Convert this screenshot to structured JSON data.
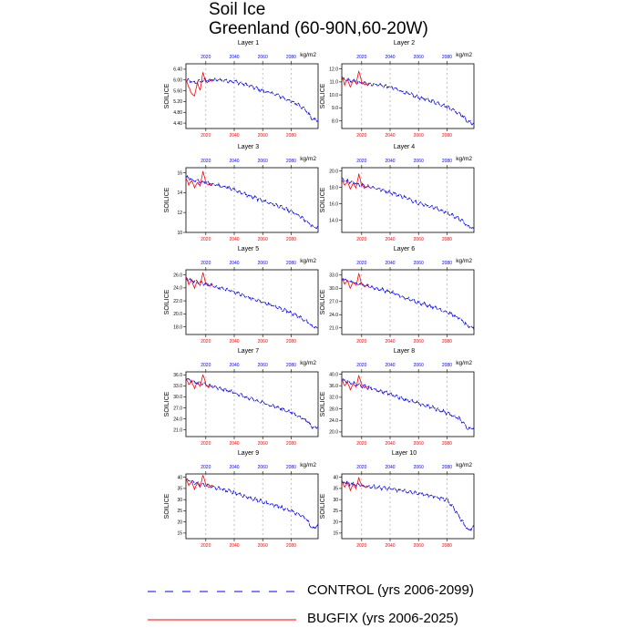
{
  "figure": {
    "title": "Soil Ice",
    "subtitle": "Greenland (60-90N,60-20W)",
    "units": "kg/m2",
    "ylabel": "SOILICE",
    "colors": {
      "control": "#0000ff",
      "bugfix": "#ff0000",
      "grid": "#999999"
    }
  },
  "legend": {
    "items": [
      {
        "label": "CONTROL (yrs 2006-2099)",
        "color": "#0000ff",
        "dash": "dashed"
      },
      {
        "label": "BUGFIX (yrs 2006-2025)",
        "color": "#ff0000",
        "dash": "solid"
      }
    ]
  },
  "chart_data": [
    {
      "type": "line",
      "title": "Layer 1",
      "ylabel": "SOILICE",
      "units": "kg/m2",
      "xlim": [
        2006,
        2099
      ],
      "ylim": [
        4.2,
        6.6
      ],
      "xticks": [
        2020,
        2040,
        2060,
        2080
      ],
      "yticks": [
        4.4,
        4.8,
        5.2,
        5.6,
        6.0,
        6.4
      ],
      "ytick_labels": [
        "4.40",
        "4.80",
        "5.20",
        "5.60",
        "6.00",
        "6.40"
      ],
      "control": {
        "x": [
          2006,
          2012,
          2020,
          2030,
          2040,
          2050,
          2060,
          2070,
          2080,
          2085,
          2090,
          2095,
          2099
        ],
        "y": [
          6.0,
          5.9,
          6.0,
          6.0,
          5.95,
          5.8,
          5.6,
          5.45,
          5.2,
          5.1,
          4.9,
          4.55,
          4.5
        ]
      },
      "bugfix": {
        "x": [
          2006,
          2008,
          2010,
          2012,
          2014,
          2016,
          2018,
          2020,
          2022,
          2025
        ],
        "y": [
          6.0,
          5.75,
          5.5,
          5.4,
          5.9,
          5.6,
          6.3,
          5.9,
          5.95,
          6.0
        ]
      }
    },
    {
      "type": "line",
      "title": "Layer 2",
      "ylabel": "SOILICE",
      "units": "kg/m2",
      "xlim": [
        2006,
        2099
      ],
      "ylim": [
        7.4,
        12.4
      ],
      "xticks": [
        2020,
        2040,
        2060,
        2080
      ],
      "yticks": [
        8.0,
        9.0,
        10.0,
        11.0,
        12.0
      ],
      "ytick_labels": [
        "8.0",
        "9.0",
        "10.0",
        "11.0",
        "12.0"
      ],
      "control": {
        "x": [
          2006,
          2012,
          2020,
          2030,
          2040,
          2050,
          2060,
          2070,
          2080,
          2085,
          2090,
          2095,
          2099
        ],
        "y": [
          11.2,
          11.1,
          10.9,
          10.8,
          10.6,
          10.2,
          9.8,
          9.5,
          9.1,
          8.8,
          8.5,
          7.9,
          7.8
        ]
      },
      "bugfix": {
        "x": [
          2006,
          2008,
          2010,
          2012,
          2014,
          2016,
          2018,
          2020,
          2022,
          2025
        ],
        "y": [
          11.5,
          10.8,
          11.2,
          10.6,
          11.1,
          10.9,
          11.8,
          11.0,
          10.8,
          10.9
        ]
      }
    },
    {
      "type": "line",
      "title": "Layer 3",
      "ylabel": "SOILICE",
      "units": "kg/m2",
      "xlim": [
        2006,
        2099
      ],
      "ylim": [
        10,
        16.5
      ],
      "xticks": [
        2020,
        2040,
        2060,
        2080
      ],
      "yticks": [
        10,
        12,
        14,
        16
      ],
      "ytick_labels": [
        "10",
        "12",
        "14",
        "16"
      ],
      "control": {
        "x": [
          2006,
          2012,
          2020,
          2030,
          2040,
          2050,
          2060,
          2070,
          2080,
          2085,
          2090,
          2095,
          2099
        ],
        "y": [
          15.6,
          15.2,
          15.0,
          14.7,
          14.3,
          13.7,
          13.2,
          12.7,
          12.1,
          11.7,
          11.2,
          10.6,
          10.5
        ]
      },
      "bugfix": {
        "x": [
          2006,
          2008,
          2010,
          2012,
          2014,
          2016,
          2018,
          2020,
          2022,
          2025
        ],
        "y": [
          15.5,
          14.8,
          15.2,
          14.5,
          15.0,
          14.7,
          16.1,
          15.0,
          14.8,
          14.9
        ]
      }
    },
    {
      "type": "line",
      "title": "Layer 4",
      "ylabel": "SOILICE",
      "units": "kg/m2",
      "xlim": [
        2006,
        2099
      ],
      "ylim": [
        12.5,
        20.4
      ],
      "xticks": [
        2020,
        2040,
        2060,
        2080
      ],
      "yticks": [
        14.0,
        16.0,
        18.0,
        20.0
      ],
      "ytick_labels": [
        "14.0",
        "16.0",
        "18.0",
        "20.0"
      ],
      "control": {
        "x": [
          2006,
          2012,
          2020,
          2030,
          2040,
          2050,
          2060,
          2070,
          2080,
          2085,
          2090,
          2095,
          2099
        ],
        "y": [
          19.0,
          18.6,
          18.3,
          17.9,
          17.4,
          16.8,
          16.1,
          15.6,
          14.9,
          14.5,
          14.0,
          13.2,
          13.0
        ]
      },
      "bugfix": {
        "x": [
          2006,
          2008,
          2010,
          2012,
          2014,
          2016,
          2018,
          2020,
          2022,
          2025
        ],
        "y": [
          19.0,
          18.2,
          18.8,
          17.8,
          18.5,
          18.0,
          19.6,
          18.3,
          17.9,
          18.1
        ]
      }
    },
    {
      "type": "line",
      "title": "Layer 5",
      "ylabel": "SOILICE",
      "units": "kg/m2",
      "xlim": [
        2006,
        2099
      ],
      "ylim": [
        16.8,
        26.8
      ],
      "xticks": [
        2020,
        2040,
        2060,
        2080
      ],
      "yticks": [
        18.0,
        20.0,
        22.0,
        24.0,
        26.0
      ],
      "ytick_labels": [
        "18.0",
        "20.0",
        "22.0",
        "24.0",
        "26.0"
      ],
      "control": {
        "x": [
          2006,
          2012,
          2020,
          2030,
          2040,
          2050,
          2060,
          2070,
          2080,
          2085,
          2090,
          2095,
          2099
        ],
        "y": [
          25.5,
          25.0,
          24.6,
          24.0,
          23.4,
          22.5,
          21.8,
          21.0,
          20.2,
          19.6,
          19.0,
          18.0,
          17.8
        ]
      },
      "bugfix": {
        "x": [
          2006,
          2008,
          2010,
          2012,
          2014,
          2016,
          2018,
          2020,
          2022,
          2025
        ],
        "y": [
          25.6,
          24.6,
          25.2,
          24.0,
          25.0,
          24.4,
          26.4,
          24.7,
          24.2,
          24.5
        ]
      }
    },
    {
      "type": "line",
      "title": "Layer 6",
      "ylabel": "SOILICE",
      "units": "kg/m2",
      "xlim": [
        2006,
        2099
      ],
      "ylim": [
        19.5,
        34.2
      ],
      "xticks": [
        2020,
        2040,
        2060,
        2080
      ],
      "yticks": [
        21.0,
        24.0,
        27.0,
        30.0,
        33.0
      ],
      "ytick_labels": [
        "21.0",
        "24.0",
        "27.0",
        "30.0",
        "33.0"
      ],
      "control": {
        "x": [
          2006,
          2012,
          2020,
          2030,
          2040,
          2050,
          2060,
          2070,
          2080,
          2085,
          2090,
          2095,
          2099
        ],
        "y": [
          32.3,
          31.5,
          30.9,
          30.0,
          29.2,
          27.8,
          26.8,
          25.8,
          24.6,
          23.8,
          22.9,
          21.2,
          21.0
        ]
      },
      "bugfix": {
        "x": [
          2006,
          2008,
          2010,
          2012,
          2014,
          2016,
          2018,
          2020,
          2022,
          2025
        ],
        "y": [
          32.4,
          31.0,
          31.8,
          30.0,
          31.5,
          30.6,
          33.3,
          31.0,
          30.4,
          30.8
        ]
      }
    },
    {
      "type": "line",
      "title": "Layer 7",
      "ylabel": "SOILICE",
      "units": "kg/m2",
      "xlim": [
        2006,
        2099
      ],
      "ylim": [
        19.2,
        36.8
      ],
      "xticks": [
        2020,
        2040,
        2060,
        2080
      ],
      "yticks": [
        21.0,
        24.0,
        27.0,
        30.0,
        33.0,
        36.0
      ],
      "ytick_labels": [
        "21.0",
        "24.0",
        "27.0",
        "30.0",
        "33.0",
        "36.0"
      ],
      "control": {
        "x": [
          2006,
          2012,
          2020,
          2030,
          2040,
          2050,
          2060,
          2070,
          2080,
          2085,
          2090,
          2095,
          2099
        ],
        "y": [
          35.0,
          34.0,
          33.3,
          32.2,
          31.2,
          29.6,
          28.4,
          27.2,
          25.8,
          24.8,
          23.8,
          21.8,
          21.8
        ]
      },
      "bugfix": {
        "x": [
          2006,
          2008,
          2010,
          2012,
          2014,
          2016,
          2018,
          2020,
          2022,
          2025
        ],
        "y": [
          35.2,
          33.4,
          34.3,
          32.3,
          34.0,
          32.9,
          36.1,
          33.5,
          32.7,
          33.1
        ]
      }
    },
    {
      "type": "line",
      "title": "Layer 8",
      "ylabel": "SOILICE",
      "units": "kg/m2",
      "xlim": [
        2006,
        2099
      ],
      "ylim": [
        18.4,
        40.8
      ],
      "xticks": [
        2020,
        2040,
        2060,
        2080
      ],
      "yticks": [
        20.0,
        24.0,
        28.0,
        32.0,
        36.0,
        40.0
      ],
      "ytick_labels": [
        "20.0",
        "24.0",
        "28.0",
        "32.0",
        "36.0",
        "40.0"
      ],
      "control": {
        "x": [
          2006,
          2012,
          2020,
          2030,
          2040,
          2050,
          2060,
          2070,
          2080,
          2085,
          2090,
          2095,
          2099
        ],
        "y": [
          38.0,
          37.0,
          36.0,
          34.6,
          33.2,
          31.4,
          29.8,
          28.4,
          26.6,
          25.4,
          24.2,
          21.0,
          21.4
        ]
      },
      "bugfix": {
        "x": [
          2006,
          2008,
          2010,
          2012,
          2014,
          2016,
          2018,
          2020,
          2022,
          2025
        ],
        "y": [
          38.4,
          36.0,
          37.4,
          34.6,
          36.8,
          35.4,
          39.6,
          36.2,
          35.4,
          35.8
        ]
      }
    },
    {
      "type": "line",
      "title": "Layer 9",
      "ylabel": "SOILICE",
      "units": "kg/m2",
      "xlim": [
        2006,
        2099
      ],
      "ylim": [
        12.5,
        41.5
      ],
      "xticks": [
        2020,
        2040,
        2060,
        2080
      ],
      "yticks": [
        15,
        20,
        25,
        30,
        35,
        40
      ],
      "ytick_labels": [
        "15",
        "20",
        "25",
        "30",
        "35",
        "40"
      ],
      "control": {
        "x": [
          2006,
          2012,
          2020,
          2030,
          2040,
          2050,
          2060,
          2070,
          2080,
          2085,
          2090,
          2095,
          2099
        ],
        "y": [
          39.0,
          37.5,
          36.5,
          34.8,
          33.2,
          31.0,
          29.0,
          27.2,
          25.0,
          23.4,
          21.8,
          17.0,
          18.5
        ]
      },
      "bugfix": {
        "x": [
          2006,
          2008,
          2010,
          2012,
          2014,
          2016,
          2018,
          2020,
          2022,
          2025
        ],
        "y": [
          39.5,
          36.5,
          38.2,
          34.8,
          37.4,
          35.8,
          41.0,
          36.8,
          35.6,
          36.4
        ]
      }
    },
    {
      "type": "line",
      "title": "Layer 10",
      "ylabel": "SOILICE",
      "units": "kg/m2",
      "xlim": [
        2006,
        2099
      ],
      "ylim": [
        12.5,
        41.5
      ],
      "xticks": [
        2020,
        2040,
        2060,
        2080
      ],
      "yticks": [
        15,
        20,
        25,
        30,
        35,
        40
      ],
      "ytick_labels": [
        "15",
        "20",
        "25",
        "30",
        "35",
        "40"
      ],
      "control": {
        "x": [
          2006,
          2012,
          2020,
          2030,
          2040,
          2050,
          2060,
          2070,
          2080,
          2085,
          2090,
          2095,
          2099
        ],
        "y": [
          38.0,
          37.0,
          36.2,
          35.6,
          34.8,
          33.8,
          32.8,
          31.6,
          29.8,
          26.0,
          21.0,
          16.0,
          18.0
        ]
      },
      "bugfix": {
        "x": [
          2006,
          2008,
          2010,
          2012,
          2014,
          2016,
          2018,
          2020,
          2022,
          2025
        ],
        "y": [
          38.5,
          35.5,
          37.6,
          34.2,
          36.9,
          35.2,
          39.8,
          36.2,
          35.6,
          36.0
        ]
      }
    }
  ]
}
